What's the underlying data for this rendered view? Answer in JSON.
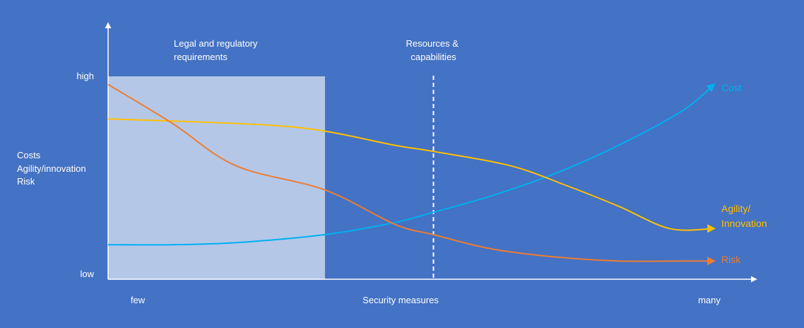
{
  "chart_data": {
    "type": "line",
    "title": "",
    "xlabel": "Security measures",
    "x_tick_labels": {
      "min": "few",
      "max": "many"
    },
    "ylabel_lines": [
      "Costs",
      "Agility/innovation",
      "Risk"
    ],
    "y_tick_labels": {
      "min": "low",
      "max": "high"
    },
    "xlim": [
      0,
      1
    ],
    "ylim": [
      0,
      1
    ],
    "grid": false,
    "regions": [
      {
        "name": "legal-regulatory",
        "label_lines": [
          "Legal and regulatory",
          "requirements"
        ],
        "x_range": [
          0,
          0.34
        ],
        "y_max": 1.0,
        "color": "#b4c7e7"
      }
    ],
    "markers": [
      {
        "name": "resources-capabilities",
        "label_lines": [
          "Resources &",
          "capabilities"
        ],
        "x": 0.51,
        "style": "dashed",
        "color": "#ffffff"
      }
    ],
    "series": [
      {
        "name": "Cost",
        "label_lines": [
          "Cost"
        ],
        "color": "#00b0f0",
        "x": [
          0,
          0.1,
          0.2,
          0.34,
          0.45,
          0.51,
          0.6,
          0.7,
          0.8,
          0.9,
          0.95
        ],
        "y": [
          0.17,
          0.17,
          0.18,
          0.22,
          0.28,
          0.33,
          0.41,
          0.52,
          0.66,
          0.83,
          0.96
        ]
      },
      {
        "name": "Agility/ Innovation",
        "label_lines": [
          "Agility/",
          "Innovation"
        ],
        "color": "#ffc000",
        "x": [
          0,
          0.1,
          0.25,
          0.34,
          0.45,
          0.51,
          0.63,
          0.72,
          0.8,
          0.88,
          0.95
        ],
        "y": [
          0.79,
          0.78,
          0.76,
          0.73,
          0.66,
          0.63,
          0.56,
          0.46,
          0.36,
          0.25,
          0.25
        ]
      },
      {
        "name": "Risk",
        "label_lines": [
          "Risk"
        ],
        "color": "#ed7d31",
        "x": [
          0,
          0.1,
          0.2,
          0.34,
          0.45,
          0.51,
          0.6,
          0.7,
          0.8,
          0.9,
          0.95
        ],
        "y": [
          0.96,
          0.77,
          0.56,
          0.44,
          0.27,
          0.22,
          0.15,
          0.11,
          0.09,
          0.09,
          0.09
        ]
      }
    ],
    "colors": {
      "background": "#4472c4",
      "axis": "#ffffff",
      "text": "#ffffff"
    }
  }
}
